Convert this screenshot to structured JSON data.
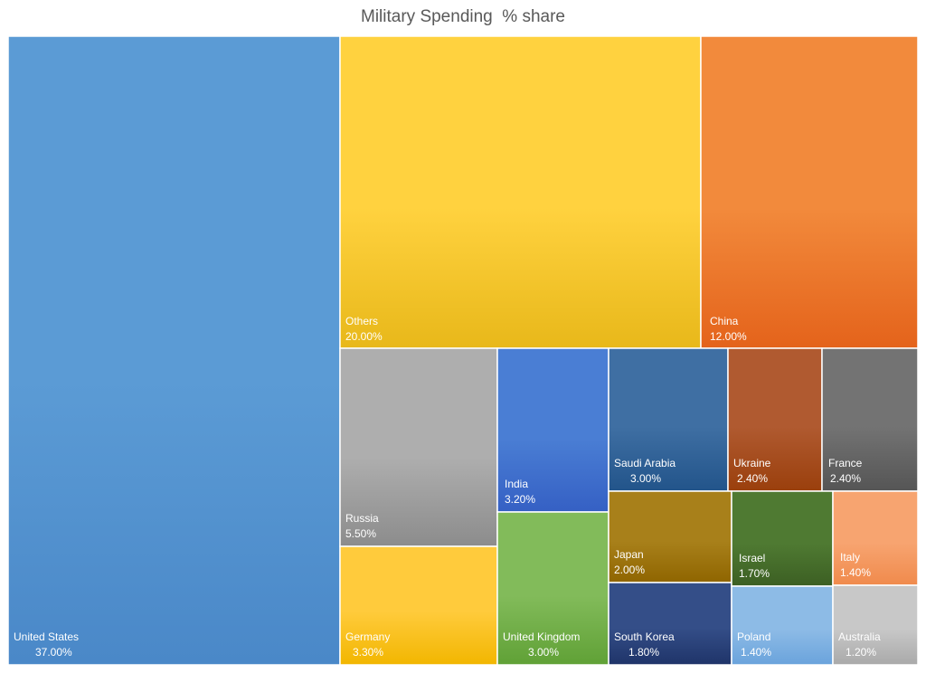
{
  "chart_data": {
    "type": "treemap",
    "title": "Military Spending  % share",
    "unit": "%",
    "items": [
      {
        "name": "United States",
        "value_label": "37.00%",
        "value": 37.0,
        "color": "#5b9bd5",
        "color_dark": "#4a88c8"
      },
      {
        "name": "Others",
        "value_label": "20.00%",
        "value": 20.0,
        "color": "#ffd23f",
        "color_dark": "#e8b81a"
      },
      {
        "name": "China",
        "value_label": "12.00%",
        "value": 12.0,
        "color": "#f28a3c",
        "color_dark": "#e4631b"
      },
      {
        "name": "Russia",
        "value_label": "5.50%",
        "value": 5.5,
        "color": "#aeaeae",
        "color_dark": "#8c8c8c"
      },
      {
        "name": "India",
        "value_label": "3.20%",
        "value": 3.2,
        "color": "#4a7ed4",
        "color_dark": "#3560c4"
      },
      {
        "name": "Saudi Arabia",
        "value_label": "3.00%",
        "value": 3.0,
        "color": "#3f6fa3",
        "color_dark": "#22548a"
      },
      {
        "name": "Ukraine",
        "value_label": "2.40%",
        "value": 2.4,
        "color": "#b05a30",
        "color_dark": "#9a3f0c"
      },
      {
        "name": "France",
        "value_label": "2.40%",
        "value": 2.4,
        "color": "#737373",
        "color_dark": "#555555"
      },
      {
        "name": "Germany",
        "value_label": "3.30%",
        "value": 3.3,
        "color": "#ffcb3c",
        "color_dark": "#f2b600"
      },
      {
        "name": "United Kingdom",
        "value_label": "3.00%",
        "value": 3.0,
        "color": "#82bb5a",
        "color_dark": "#60a136"
      },
      {
        "name": "Japan",
        "value_label": "2.00%",
        "value": 2.0,
        "color": "#a8801a",
        "color_dark": "#8f6500"
      },
      {
        "name": "South Korea",
        "value_label": "1.80%",
        "value": 1.8,
        "color": "#344e88",
        "color_dark": "#1f3469"
      },
      {
        "name": "Israel",
        "value_label": "1.70%",
        "value": 1.7,
        "color": "#4f7a32",
        "color_dark": "#3c5f23"
      },
      {
        "name": "Italy",
        "value_label": "1.40%",
        "value": 1.4,
        "color": "#f7a470",
        "color_dark": "#f08a4c"
      },
      {
        "name": "Poland",
        "value_label": "1.40%",
        "value": 1.4,
        "color": "#8dbbe6",
        "color_dark": "#6aa3dc"
      },
      {
        "name": "Australia",
        "value_label": "1.20%",
        "value": 1.2,
        "color": "#c8c8c8",
        "color_dark": "#a9a9a9"
      }
    ]
  }
}
